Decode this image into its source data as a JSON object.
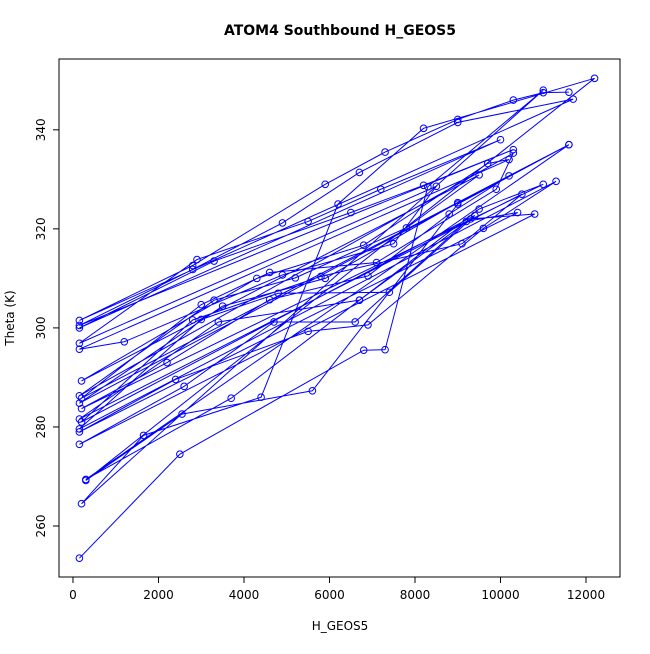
{
  "chart_data": {
    "type": "line",
    "title": "ATOM4 Southbound H_GEOS5",
    "x_label": "H_GEOS5",
    "y_label": "Theta (K)",
    "xlim": [
      -327,
      12795
    ],
    "ylim": [
      249.7,
      354.3
    ],
    "xticks": [
      0,
      2000,
      4000,
      6000,
      8000,
      10000,
      12000
    ],
    "yticks": [
      260,
      280,
      300,
      320,
      340
    ],
    "series": [
      {
        "color": "#0000ff",
        "x": [
          150,
          2500,
          6800,
          7300,
          8300,
          11000,
          200,
          1650,
          4400,
          6200,
          8200,
          12200,
          300,
          2550,
          5600,
          9000,
          11600,
          300,
          3700,
          6700,
          9300,
          10800,
          150,
          2600,
          4700,
          6600,
          9200,
          10400,
          150,
          2400,
          5500,
          6900,
          9600,
          11300,
          150,
          3000,
          4800,
          7400,
          9400,
          200,
          2800,
          5800,
          9100,
          10500,
          150,
          3400,
          6700,
          9500,
          11000,
          200,
          2200,
          4600,
          6900,
          8800,
          10200,
          150,
          3500,
          5900,
          9000,
          11600,
          200,
          3000,
          4600,
          7100,
          9900,
          10300,
          150,
          3300,
          5200,
          7800,
          9500,
          200,
          4300,
          6800,
          9700,
          10200,
          150,
          1200,
          4900,
          7500,
          8500,
          150,
          2900,
          5500,
          7200,
          10000,
          150,
          3300,
          6500,
          8200,
          10300,
          150,
          2800,
          4900,
          6700,
          9000,
          11700,
          150,
          2800,
          5900,
          7300,
          9000,
          10300,
          11000,
          11600
        ],
        "values": [
          253.5,
          274.5,
          295.5,
          295.6,
          328.5,
          348,
          264.5,
          278.3,
          286,
          325,
          340.3,
          350.4,
          269.2,
          282.6,
          287.3,
          325,
          337,
          269.4,
          285.8,
          305.6,
          322,
          323,
          276.5,
          288.2,
          301.2,
          301.2,
          321.5,
          323.3,
          279,
          289.6,
          299.3,
          300.6,
          320.1,
          329.6,
          279.6,
          301.7,
          307,
          307.2,
          322.7,
          281,
          301.6,
          310.4,
          317,
          327,
          281.6,
          301.2,
          305.6,
          324,
          329,
          283.7,
          293,
          305.7,
          310.5,
          323,
          330.7,
          284.8,
          304.4,
          310,
          325.3,
          337,
          285.8,
          304.7,
          311.2,
          313.2,
          328,
          335.3,
          286.3,
          305.6,
          310.1,
          320.2,
          330.9,
          289.3,
          310,
          316.7,
          333.2,
          334,
          295.7,
          297.2,
          310.7,
          317,
          328.6,
          296.9,
          313.8,
          321.5,
          328,
          338,
          300,
          313.5,
          323.3,
          328.8,
          336,
          300.5,
          311.8,
          321.2,
          331.4,
          341.5,
          346.2,
          301.5,
          312.6,
          329,
          335.5,
          342.1,
          346,
          347.5,
          347.6
        ]
      }
    ]
  }
}
